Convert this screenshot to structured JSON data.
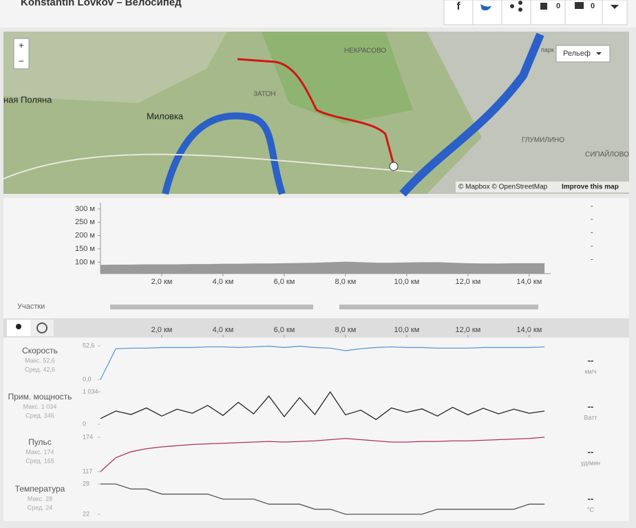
{
  "header": {
    "title": "Konstantin Lovkov – Велосипед",
    "likes": 0,
    "comments": 0
  },
  "map": {
    "zoom_in": "+",
    "zoom_out": "−",
    "layer_button": "Рельеф",
    "labels": [
      "НЕКРАСОВО",
      "ЗАТОН",
      "Миловка",
      "ная Поляна",
      "ГЛУМИЛИНО",
      "СИПАЙЛОВО",
      "парк"
    ],
    "attribution": "© Mapbox © OpenStreetMap",
    "improve": "Improve this map"
  },
  "elevation": {
    "xlim": [
      0,
      14.7
    ],
    "ylim": [
      57,
      305
    ],
    "xticks": [
      {
        "value": 2,
        "label": "2,0 км"
      },
      {
        "value": 4,
        "label": "4,0 км"
      },
      {
        "value": 6,
        "label": "6,0 км"
      },
      {
        "value": 8,
        "label": "8,0 км"
      },
      {
        "value": 10,
        "label": "10,0 км"
      },
      {
        "value": 12,
        "label": "12,0 км"
      },
      {
        "value": 14,
        "label": "14,0 км"
      }
    ],
    "yticks": [
      {
        "value": 100,
        "label": "100 м"
      },
      {
        "value": 150,
        "label": "150 м"
      },
      {
        "value": 200,
        "label": "200 м"
      },
      {
        "value": 250,
        "label": "250 м"
      },
      {
        "value": 300,
        "label": "300 м"
      }
    ],
    "x": [
      0,
      0.5,
      1,
      1.5,
      2,
      2.5,
      3,
      3.5,
      4,
      4.5,
      5,
      5.5,
      6,
      6.5,
      7,
      7.5,
      8,
      8.5,
      9,
      9.5,
      10,
      10.5,
      11,
      11.5,
      12,
      12.5,
      13,
      13.5,
      14,
      14.5
    ],
    "values": [
      90,
      91,
      91,
      92,
      92,
      92,
      93,
      93,
      94,
      94,
      95,
      95,
      96,
      97,
      98,
      100,
      102,
      100,
      98,
      98,
      99,
      100,
      100,
      98,
      96,
      95,
      95,
      96,
      96,
      96
    ],
    "placeholder": "-"
  },
  "segments": {
    "label": "Участки"
  },
  "streams": {
    "xlim": [
      0,
      14.7
    ],
    "xticks": [
      {
        "value": 2,
        "label": "2,0 км"
      },
      {
        "value": 4,
        "label": "4,0 км"
      },
      {
        "value": 6,
        "label": "6,0 км"
      },
      {
        "value": 8,
        "label": "8,0 км"
      },
      {
        "value": 10,
        "label": "10,0 км"
      },
      {
        "value": 12,
        "label": "12,0 км"
      },
      {
        "value": 14,
        "label": "14,0 км"
      }
    ],
    "x": [
      0,
      0.5,
      1,
      1.5,
      2,
      2.5,
      3,
      3.5,
      4,
      4.5,
      5,
      5.5,
      6,
      6.5,
      7,
      7.5,
      8,
      8.5,
      9,
      9.5,
      10,
      10.5,
      11,
      11.5,
      12,
      12.5,
      13,
      13.5,
      14,
      14.5
    ],
    "rows": [
      {
        "name": "Скорость",
        "max_label": "Макс. 52,6",
        "avg_label": "Сред. 42,6",
        "unit": "км/ч",
        "current": "--",
        "color": "#5b9bd5",
        "ylim": [
          0,
          52.6
        ],
        "yticks": [
          {
            "value": 0,
            "label": "0,0"
          },
          {
            "value": 52.6,
            "label": "52,6"
          }
        ],
        "values": [
          0,
          48,
          49,
          49,
          50,
          50,
          50,
          51,
          51,
          50,
          51,
          52,
          50,
          52,
          50,
          49,
          45,
          48,
          50,
          51,
          50,
          50,
          49,
          49,
          49,
          50,
          50,
          50,
          50,
          51
        ]
      },
      {
        "name": "Прим. мощность",
        "max_label": "Макс. 1 034",
        "avg_label": "Сред. 346",
        "unit": "Ватт",
        "current": "--",
        "color": "#222222",
        "ylim": [
          0,
          1034
        ],
        "yticks": [
          0,
          {
            "value": 1034,
            "label": "1 034"
          }
        ],
        "values": [
          180,
          420,
          310,
          520,
          260,
          480,
          350,
          600,
          280,
          700,
          330,
          900,
          240,
          850,
          310,
          1034,
          300,
          450,
          150,
          520,
          380,
          490,
          260,
          540,
          300,
          510,
          330,
          480,
          350,
          420
        ]
      },
      {
        "name": "Пульс",
        "max_label": "Макс. 174",
        "avg_label": "Сред. 165",
        "unit": "уд/мин",
        "current": "--",
        "color": "#b0305a",
        "ylim": [
          117,
          174
        ],
        "yticks": [
          117,
          174
        ],
        "values": [
          117,
          140,
          150,
          155,
          158,
          160,
          162,
          163,
          164,
          165,
          166,
          167,
          166,
          167,
          168,
          170,
          172,
          170,
          168,
          166,
          166,
          167,
          167,
          168,
          168,
          169,
          170,
          171,
          172,
          174
        ]
      },
      {
        "name": "Температура",
        "max_label": "Макс. 28",
        "avg_label": "Сред. 24",
        "unit": "°C",
        "current": "--",
        "color": "#555555",
        "ylim": [
          22,
          28
        ],
        "yticks": [
          22,
          28
        ],
        "values": [
          28,
          28,
          27,
          27,
          26,
          26,
          26,
          26,
          25,
          25,
          25,
          24,
          24,
          24,
          23,
          23,
          22,
          22,
          22,
          22,
          22,
          22,
          23,
          23,
          23,
          23,
          23,
          23,
          24,
          24
        ]
      }
    ]
  }
}
